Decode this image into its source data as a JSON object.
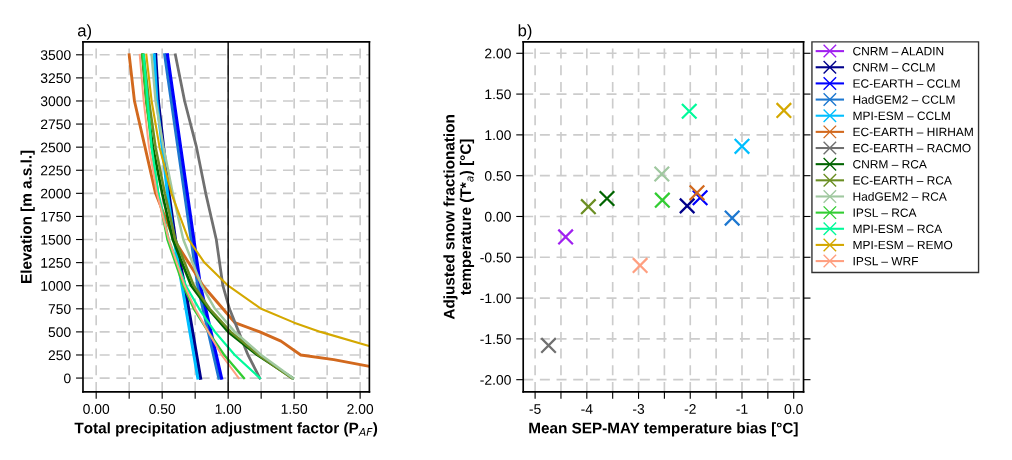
{
  "chart_data": [
    {
      "type": "line",
      "title": "a)",
      "xlabel": "Total precipitation adjustment factor (P$_{AF}$)",
      "ylabel": "Elevation [m a.s.l.]",
      "xlim": [
        -0.1,
        2.07
      ],
      "ylim": [
        -150,
        3640
      ],
      "xticks": [
        {
          "value": 0,
          "label": "0.00"
        },
        {
          "value": 0.25,
          "label": null
        },
        {
          "value": 0.5,
          "label": "0.50"
        },
        {
          "value": 0.75,
          "label": null
        },
        {
          "value": 1,
          "label": "1.00"
        },
        {
          "value": 1.25,
          "label": null
        },
        {
          "value": 1.5,
          "label": "1.50"
        },
        {
          "value": 1.75,
          "label": null
        },
        {
          "value": 2,
          "label": "2.00"
        }
      ],
      "yticks": [
        0,
        250,
        500,
        750,
        1000,
        1250,
        1500,
        1750,
        2000,
        2250,
        2500,
        2750,
        3000,
        3250,
        3500
      ],
      "grid": true,
      "line_style": "solid",
      "marker": "none",
      "ref_lines": [
        {
          "axis": "x",
          "value": 1,
          "color": "#000000"
        }
      ],
      "series": [
        {
          "color": "#00008b",
          "x": [
            0.45,
            0.47,
            0.51,
            0.55,
            0.6,
            0.67,
            0.73,
            0.79
          ],
          "values": [
            3500,
            3000,
            2500,
            2000,
            1500,
            1000,
            500,
            0
          ]
        },
        {
          "color": "#1e78d0",
          "x": [
            0.52,
            0.57,
            0.62,
            0.67,
            0.72,
            0.77,
            0.85,
            0.93
          ],
          "values": [
            3500,
            3000,
            2500,
            2000,
            1500,
            1000,
            500,
            0
          ]
        },
        {
          "color": "#0000ff",
          "x": [
            0.54,
            0.59,
            0.64,
            0.69,
            0.74,
            0.79,
            0.87,
            0.95
          ],
          "values": [
            3500,
            3000,
            2500,
            2000,
            1500,
            1000,
            500,
            0
          ]
        },
        {
          "color": "#00bfff",
          "x": [
            0.44,
            0.46,
            0.5,
            0.54,
            0.59,
            0.65,
            0.71,
            0.77
          ],
          "values": [
            3500,
            3000,
            2500,
            2000,
            1500,
            1000,
            500,
            0
          ]
        },
        {
          "color": "#d2691e",
          "x": [
            0.25,
            0.29,
            0.37,
            0.45,
            0.59,
            0.81,
            0.96,
            1.05,
            1.24,
            1.4,
            1.55,
            1.8,
            2.06
          ],
          "values": [
            3500,
            3000,
            2500,
            2000,
            1500,
            1000,
            750,
            600,
            500,
            400,
            250,
            200,
            130
          ]
        },
        {
          "color": "#707070",
          "x": [
            0.6,
            0.67,
            0.76,
            0.83,
            0.91,
            0.96,
            1.01,
            1.08,
            1.15,
            1.24
          ],
          "values": [
            3500,
            3000,
            2500,
            2000,
            1500,
            1000,
            750,
            500,
            250,
            0
          ]
        },
        {
          "color": "#006400",
          "x": [
            0.35,
            0.38,
            0.43,
            0.5,
            0.58,
            0.72,
            0.85,
            1.0,
            1.22,
            1.49
          ],
          "values": [
            3500,
            3000,
            2500,
            2000,
            1500,
            1000,
            750,
            500,
            250,
            0
          ]
        },
        {
          "color": "#6b8e23",
          "x": [
            0.36,
            0.4,
            0.45,
            0.52,
            0.6,
            0.74,
            0.86,
            1.02,
            1.23,
            1.48
          ],
          "values": [
            3500,
            3000,
            2500,
            2000,
            1500,
            1000,
            750,
            500,
            250,
            0
          ]
        },
        {
          "color": "#a0c8a0",
          "x": [
            0.42,
            0.45,
            0.51,
            0.58,
            0.66,
            0.8,
            0.9,
            1.05,
            1.25,
            1.49
          ],
          "values": [
            3500,
            3000,
            2500,
            2000,
            1500,
            1000,
            750,
            500,
            250,
            0
          ]
        },
        {
          "color": "#32cd32",
          "x": [
            0.35,
            0.38,
            0.42,
            0.47,
            0.54,
            0.66,
            0.74,
            0.85,
            0.97,
            1.12
          ],
          "values": [
            3500,
            3000,
            2500,
            2000,
            1500,
            1000,
            750,
            500,
            250,
            0
          ]
        },
        {
          "color": "#00fa9a",
          "x": [
            0.36,
            0.39,
            0.42,
            0.47,
            0.55,
            0.68,
            0.78,
            0.9,
            1.05,
            1.24
          ],
          "values": [
            3500,
            3000,
            2500,
            2000,
            1500,
            1000,
            750,
            500,
            250,
            0
          ]
        },
        {
          "color": "#d4a800",
          "x": [
            0.38,
            0.42,
            0.48,
            0.57,
            0.7,
            0.82,
            1.0,
            1.25,
            1.5,
            1.7,
            2.06
          ],
          "values": [
            3500,
            3000,
            2500,
            2000,
            1500,
            1250,
            1000,
            750,
            600,
            500,
            350
          ]
        },
        {
          "color": "#ff9f80",
          "x": [
            0.33,
            0.36,
            0.4,
            0.46,
            0.55,
            0.67,
            0.75,
            0.85,
            0.95,
            1.08
          ],
          "values": [
            3500,
            3000,
            2500,
            2000,
            1500,
            1000,
            750,
            500,
            250,
            0
          ]
        }
      ]
    },
    {
      "type": "scatter",
      "title": "b)",
      "xlabel": "Mean SEP-MAY temperature bias [°C]",
      "ylabel": "Adjusted snow fractionation\ntemperature (T*$_{a}$) [°C]",
      "xlim": [
        -5.23,
        0.19
      ],
      "ylim": [
        -2.15,
        2.14
      ],
      "xticks": [
        -5,
        {
          "value": -4.5,
          "label": null
        },
        -4,
        {
          "value": -3.5,
          "label": null
        },
        -3,
        {
          "value": -2.5,
          "label": null
        },
        -2,
        {
          "value": -1.5,
          "label": null
        },
        -1,
        {
          "value": -0.5,
          "label": null
        },
        {
          "value": 0,
          "label": "0.0"
        }
      ],
      "yticks": [
        {
          "value": -2,
          "label": "-2.00"
        },
        {
          "value": -1.5,
          "label": "-1.50"
        },
        {
          "value": -1,
          "label": "-1.00"
        },
        {
          "value": -0.5,
          "label": "-0.50"
        },
        {
          "value": 0,
          "label": "0.00"
        },
        {
          "value": 0.5,
          "label": "0.50"
        },
        {
          "value": 1,
          "label": "1.00"
        },
        {
          "value": 1.5,
          "label": "1.50"
        },
        {
          "value": 2,
          "label": "2.00"
        }
      ],
      "grid": true,
      "marker": "cross",
      "legend": "right",
      "series": [
        {
          "name": "CNRM – ALADIN",
          "color": "#a020f0",
          "x": [
            -4.41
          ],
          "values": [
            -0.25
          ]
        },
        {
          "name": "CNRM – CCLM",
          "color": "#00008b",
          "x": [
            -2.06
          ],
          "values": [
            0.13
          ]
        },
        {
          "name": "EC-EARTH – CCLM",
          "color": "#0000ff",
          "x": [
            -1.81
          ],
          "values": [
            0.23
          ]
        },
        {
          "name": "HadGEM2 – CCLM",
          "color": "#1e78d0",
          "x": [
            -1.19
          ],
          "values": [
            -0.02
          ]
        },
        {
          "name": "MPI-ESM – CCLM",
          "color": "#00bfff",
          "x": [
            -1.0
          ],
          "values": [
            0.86
          ]
        },
        {
          "name": "EC-EARTH – HIRHAM",
          "color": "#d2691e",
          "x": [
            -1.87
          ],
          "values": [
            0.29
          ]
        },
        {
          "name": "EC-EARTH – RACMO",
          "color": "#707070",
          "x": [
            -4.74
          ],
          "values": [
            -1.58
          ]
        },
        {
          "name": "CNRM – RCA",
          "color": "#006400",
          "x": [
            -3.61
          ],
          "values": [
            0.22
          ]
        },
        {
          "name": "EC-EARTH – RCA",
          "color": "#6b8e23",
          "x": [
            -3.97
          ],
          "values": [
            0.12
          ]
        },
        {
          "name": "HadGEM2 – RCA",
          "color": "#a0c8a0",
          "x": [
            -2.55
          ],
          "values": [
            0.52
          ]
        },
        {
          "name": "IPSL – RCA",
          "color": "#32cd32",
          "x": [
            -2.54
          ],
          "values": [
            0.2
          ]
        },
        {
          "name": "MPI-ESM – RCA",
          "color": "#00fa9a",
          "x": [
            -2.02
          ],
          "values": [
            1.29
          ]
        },
        {
          "name": "MPI-ESM – REMO",
          "color": "#d4a800",
          "x": [
            -0.19
          ],
          "values": [
            1.3
          ]
        },
        {
          "name": "IPSL – WRF",
          "color": "#ff9f80",
          "x": [
            -2.97
          ],
          "values": [
            -0.6
          ]
        }
      ]
    }
  ]
}
